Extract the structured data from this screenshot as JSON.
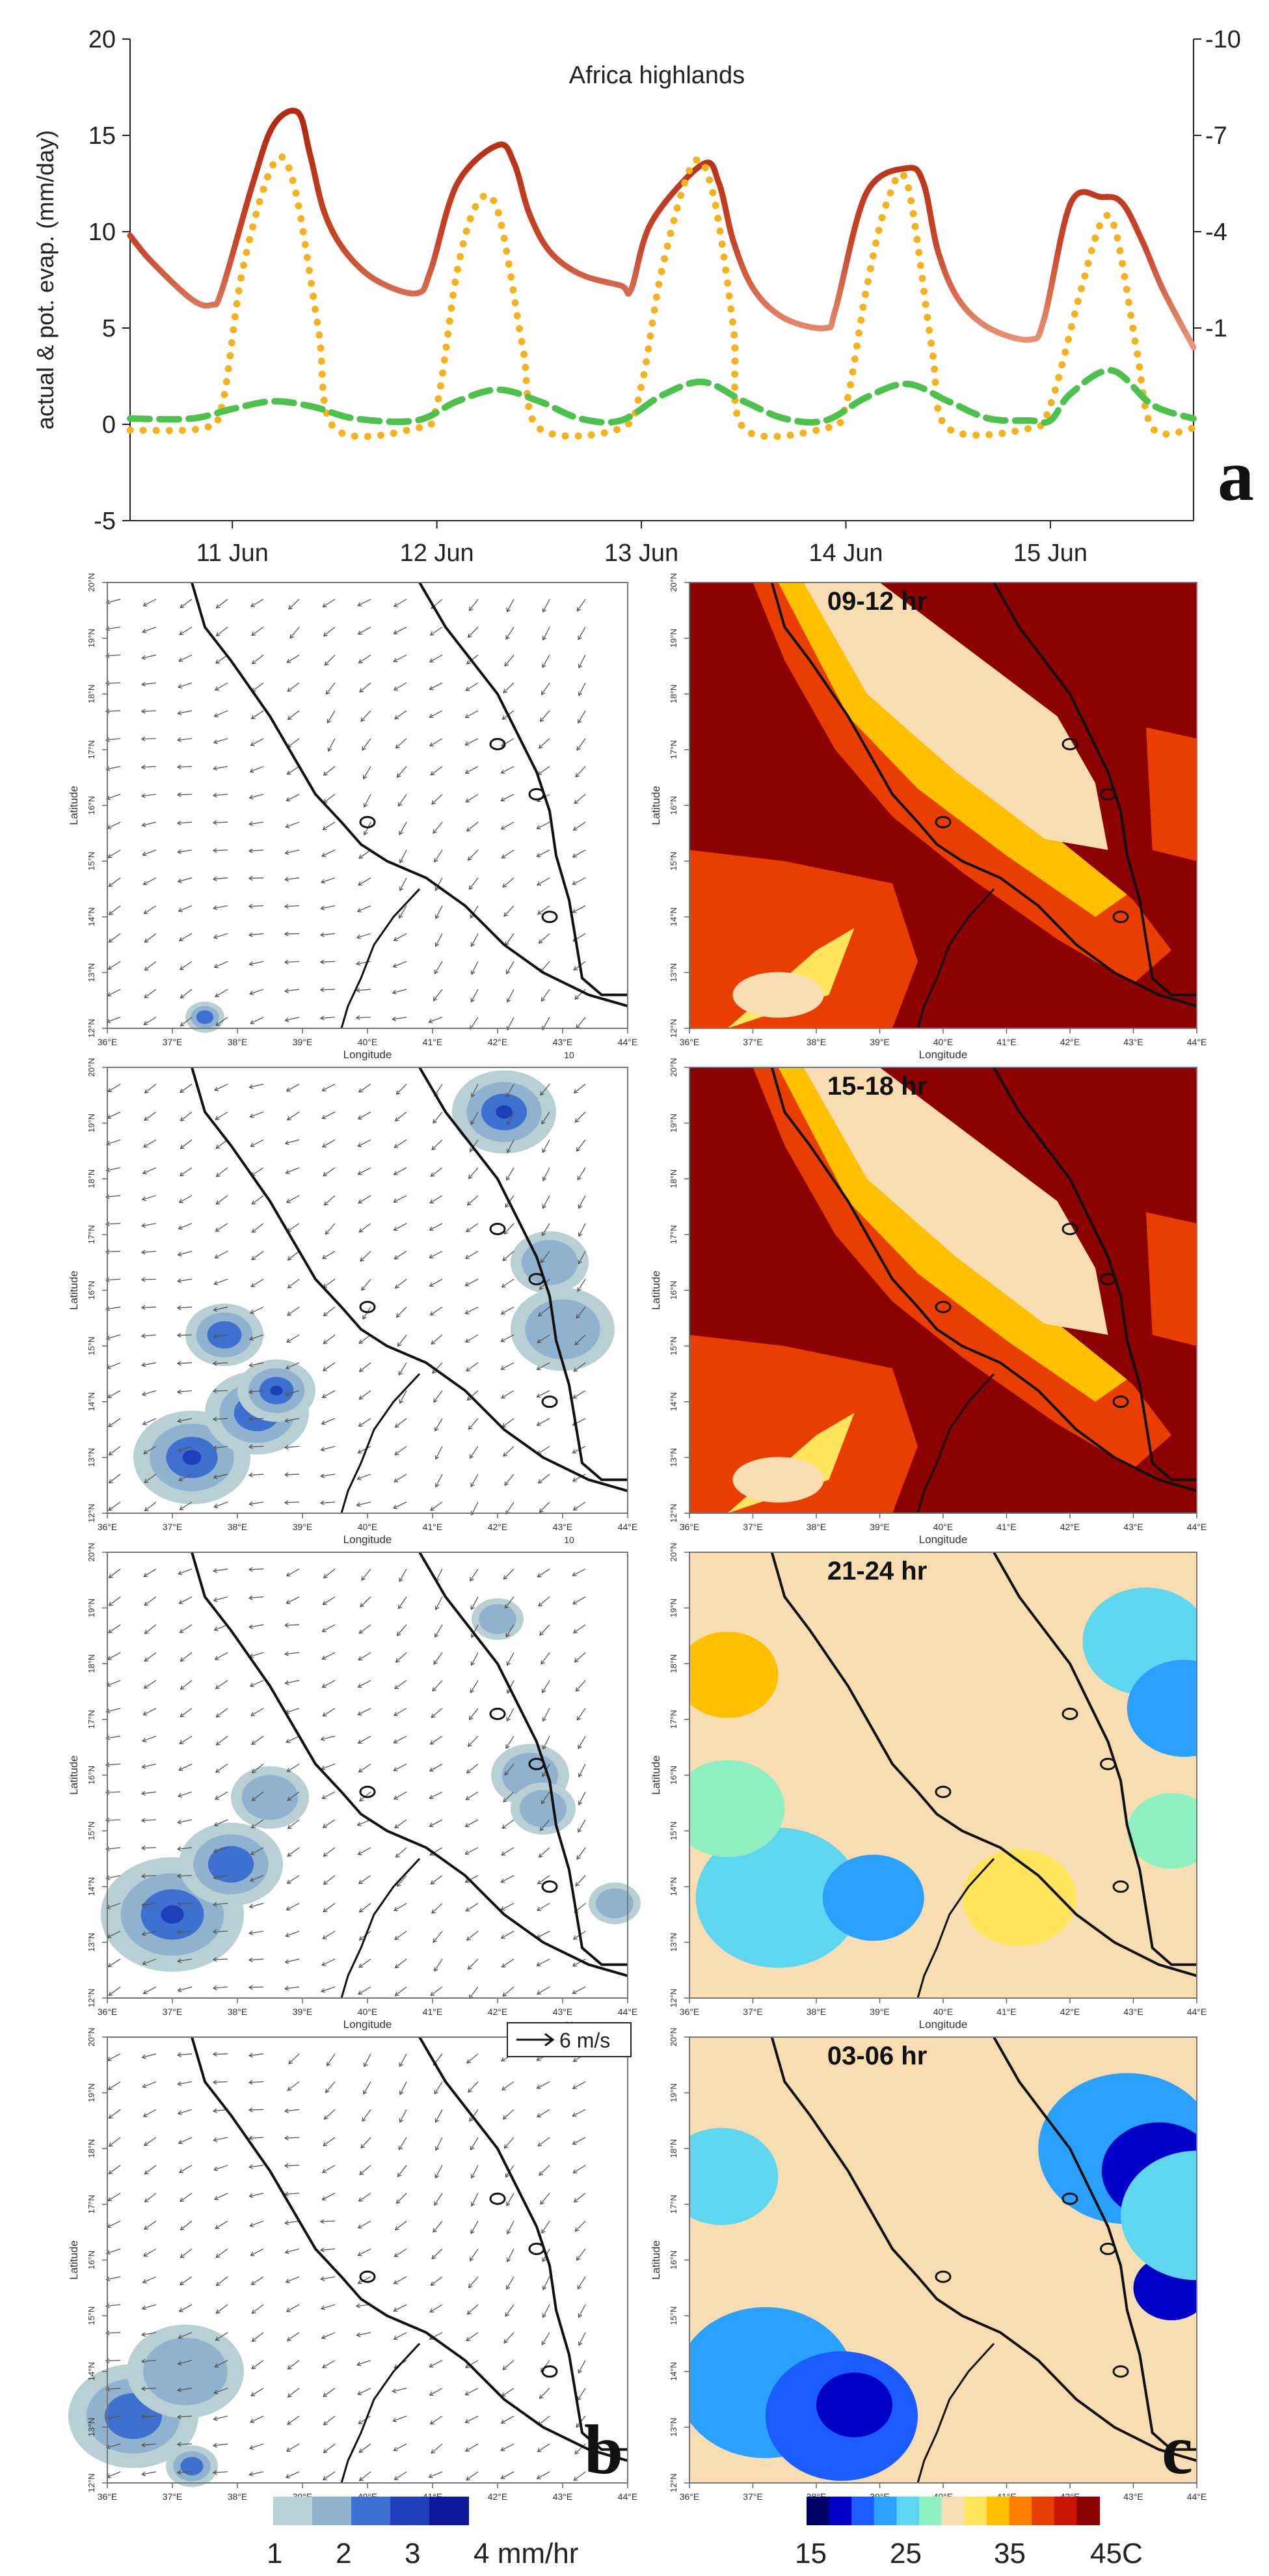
{
  "chart_data": [
    {
      "type": "line",
      "panel_letter": "a",
      "annotation": "Africa highlands",
      "ylabel": "actual & pot. evap. (mm/day)",
      "ylim": [
        -5,
        20
      ],
      "yticks": [
        "-5",
        "0",
        "5",
        "10",
        "15",
        "20"
      ],
      "y2ticks": [
        "-10",
        "-7",
        "-4",
        "-1"
      ],
      "xticks": [
        "11 Jun",
        "12 Jun",
        "13 Jun",
        "14 Jun",
        "15 Jun"
      ],
      "x_days": [
        10.5,
        15.7
      ],
      "colors": {
        "dark": "#b22a10",
        "light": "#e8967a",
        "dotted": "#f5b21c",
        "dashed": "#4cc14c"
      },
      "series": [
        {
          "style": "solid-gradient",
          "x": [
            10.5,
            10.6,
            10.8,
            10.9,
            10.95,
            11.1,
            11.2,
            11.32,
            11.38,
            11.45,
            11.55,
            11.7,
            11.9,
            11.97,
            12.1,
            12.3,
            12.38,
            12.45,
            12.55,
            12.7,
            12.9,
            12.95,
            13.05,
            13.3,
            13.38,
            13.45,
            13.55,
            13.7,
            13.9,
            13.95,
            14.1,
            14.3,
            14.38,
            14.45,
            14.55,
            14.7,
            14.9,
            14.97,
            15.1,
            15.25,
            15.35,
            15.45,
            15.55,
            15.7
          ],
          "y": [
            9.8,
            8.5,
            6.5,
            6.2,
            7.0,
            12.5,
            15.5,
            16.2,
            14.0,
            11.0,
            9.0,
            7.5,
            6.8,
            8.0,
            12.5,
            14.5,
            13.5,
            11.0,
            9.0,
            7.8,
            7.2,
            7.0,
            10.5,
            13.5,
            12.5,
            9.5,
            7.0,
            5.5,
            5.0,
            6.0,
            12.0,
            13.3,
            12.5,
            9.0,
            6.5,
            5.0,
            4.4,
            5.5,
            11.5,
            11.8,
            11.5,
            9.5,
            7.0,
            4.0
          ]
        },
        {
          "style": "dotted",
          "x": [
            10.5,
            10.85,
            10.95,
            11.05,
            11.2,
            11.3,
            11.42,
            11.5,
            11.9,
            12.0,
            12.1,
            12.2,
            12.3,
            12.42,
            12.5,
            12.9,
            13.0,
            13.1,
            13.25,
            13.35,
            13.45,
            13.5,
            13.9,
            14.0,
            14.1,
            14.2,
            14.3,
            14.42,
            14.5,
            14.9,
            15.0,
            15.15,
            15.25,
            15.32,
            15.42,
            15.5,
            15.7
          ],
          "y": [
            -0.3,
            -0.2,
            1.0,
            8.0,
            13.5,
            12.5,
            5.0,
            -0.2,
            -0.2,
            1.0,
            8.0,
            11.5,
            11.0,
            4.0,
            -0.2,
            -0.2,
            2.0,
            8.0,
            13.5,
            12.0,
            5.0,
            -0.2,
            -0.2,
            1.0,
            7.0,
            11.5,
            12.5,
            4.0,
            -0.2,
            -0.2,
            1.0,
            7.0,
            10.5,
            10.0,
            4.0,
            -0.2,
            -0.2
          ]
        },
        {
          "style": "dashed",
          "x": [
            10.5,
            10.8,
            11.0,
            11.2,
            11.4,
            11.6,
            11.9,
            12.1,
            12.3,
            12.5,
            12.7,
            12.9,
            13.1,
            13.3,
            13.5,
            13.7,
            13.9,
            14.1,
            14.3,
            14.5,
            14.7,
            14.9,
            15.0,
            15.1,
            15.3,
            15.5,
            15.7
          ],
          "y": [
            0.3,
            0.3,
            0.8,
            1.2,
            0.9,
            0.3,
            0.2,
            1.2,
            1.8,
            1.2,
            0.3,
            0.2,
            1.5,
            2.2,
            1.2,
            0.3,
            0.2,
            1.4,
            2.1,
            1.2,
            0.3,
            0.2,
            0.2,
            1.6,
            2.8,
            1.0,
            0.3
          ]
        }
      ]
    },
    {
      "type": "heatmap",
      "panel_letter": "b",
      "xlabel": "Longitude",
      "ylabel": "Latitude",
      "xlim": [
        36,
        44
      ],
      "ylim": [
        12,
        20
      ],
      "xticks": [
        "36°E",
        "37°E",
        "38°E",
        "39°E",
        "40°E",
        "41°E",
        "42°E",
        "43°E",
        "44°E"
      ],
      "yticks": [
        "12°N",
        "13°N",
        "14°N",
        "15°N",
        "16°N",
        "17°N",
        "18°N",
        "19°N",
        "20°N"
      ],
      "vector_ref_small": "10",
      "vector_ref_label": "6 m/s",
      "colorbar": {
        "labels": [
          "1",
          "2",
          "3",
          "4 mm/hr"
        ],
        "colors": [
          "#b8cfd3",
          "#8fb3cf",
          "#3f6fcf",
          "#1f3fb8",
          "#0f1a9a"
        ]
      },
      "rain_cells": [
        [
          [
            37.5,
            12.2,
            0.3,
            2
          ]
        ],
        [
          [
            37.3,
            13.0,
            0.9,
            3
          ],
          [
            38.3,
            13.8,
            0.8,
            2
          ],
          [
            37.8,
            15.2,
            0.6,
            2
          ],
          [
            42.1,
            19.2,
            0.8,
            3
          ],
          [
            43.0,
            15.3,
            0.8,
            1
          ],
          [
            42.8,
            16.5,
            0.6,
            1
          ],
          [
            38.6,
            14.2,
            0.6,
            3
          ]
        ],
        [
          [
            37.0,
            13.5,
            1.1,
            3
          ],
          [
            37.9,
            14.4,
            0.8,
            2
          ],
          [
            38.5,
            15.6,
            0.6,
            1
          ],
          [
            42.5,
            16.0,
            0.6,
            1
          ],
          [
            42.7,
            15.4,
            0.5,
            1
          ],
          [
            42.0,
            18.8,
            0.4,
            1
          ],
          [
            43.8,
            13.7,
            0.4,
            1
          ]
        ],
        [
          [
            36.4,
            13.2,
            1.0,
            2
          ],
          [
            37.2,
            14.0,
            0.9,
            1
          ],
          [
            37.3,
            12.3,
            0.4,
            2
          ]
        ]
      ]
    },
    {
      "type": "heatmap",
      "panel_letter": "c",
      "xlabel": "Longitude",
      "xlim": [
        36,
        44
      ],
      "ylim": [
        12,
        20
      ],
      "xticks": [
        "36°E",
        "37°E",
        "38°E",
        "39°E",
        "40°E",
        "41°E",
        "42°E",
        "43°E",
        "44°E"
      ],
      "yticks": [
        "12°N",
        "13°N",
        "14°N",
        "15°N",
        "16°N",
        "17°N",
        "18°N",
        "19°N",
        "20°N"
      ],
      "panels": [
        "09-12 hr",
        "15-18 hr",
        "21-24 hr",
        "03-06 hr"
      ],
      "colorbar": {
        "labels": [
          "15",
          "25",
          "35",
          "45C"
        ],
        "colors": [
          "#000066",
          "#0000c8",
          "#1a5cff",
          "#2aa0ff",
          "#5ed6f0",
          "#8ef0c0",
          "#f8ddb3",
          "#ffe45c",
          "#ffc000",
          "#ff7f00",
          "#ea3e00",
          "#c81400",
          "#8b0000"
        ]
      }
    }
  ]
}
